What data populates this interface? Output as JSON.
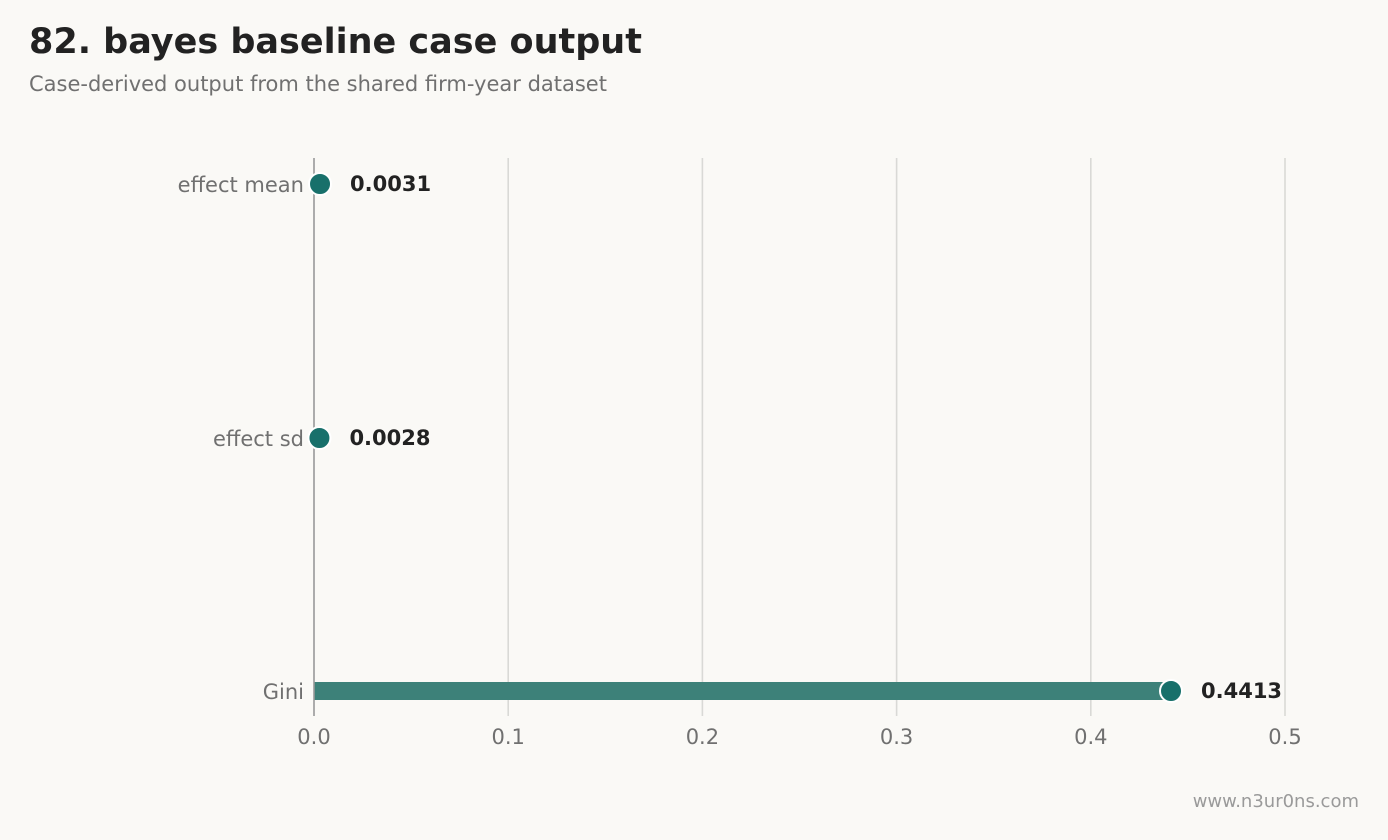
{
  "header": {
    "title": "82. bayes baseline case output",
    "subtitle": "Case-derived output from the shared firm-year dataset"
  },
  "footer": {
    "watermark": "www.n3ur0ns.com"
  },
  "colors": {
    "accent": "#18706b",
    "bar": "#3d8179",
    "grid": "#d9d9d6",
    "axis": "#999999",
    "tick_text": "#707070",
    "value_text": "#222222",
    "background": "#faf9f6"
  },
  "chart_data": {
    "type": "bar",
    "orientation": "horizontal",
    "style": "lollipop",
    "categories": [
      "effect mean",
      "effect sd",
      "Gini"
    ],
    "values": [
      0.0031,
      0.0028,
      0.4413
    ],
    "value_labels": [
      "0.0031",
      "0.0028",
      "0.4413"
    ],
    "xlim": [
      0,
      0.5
    ],
    "x_ticks": [
      0.0,
      0.1,
      0.2,
      0.3,
      0.4,
      0.5
    ],
    "x_tick_labels": [
      "0.0",
      "0.1",
      "0.2",
      "0.3",
      "0.4",
      "0.5"
    ],
    "grid": "vertical",
    "xlabel": "",
    "ylabel": ""
  }
}
